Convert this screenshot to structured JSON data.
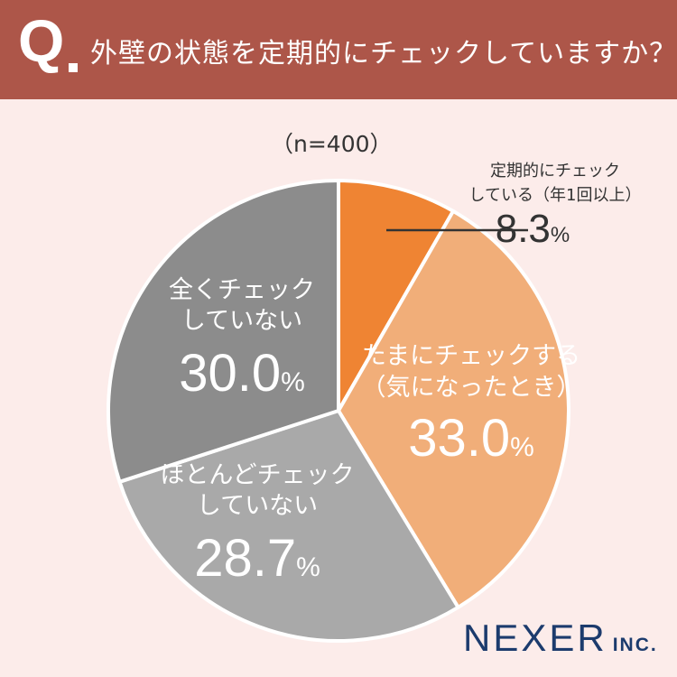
{
  "header": {
    "q_mark": "Q",
    "question": "外壁の状態を定期的にチェックしていますか？"
  },
  "sample_size": "（n=400）",
  "chart_data": {
    "type": "pie",
    "slices": [
      {
        "label_lines": [
          "定期的にチェック",
          "している（年1回以上）"
        ],
        "value": 8.3,
        "value_text": "8.3",
        "unit": "%",
        "color": "#ef8433"
      },
      {
        "label_lines": [
          "たまにチェックする",
          "（気になったとき）"
        ],
        "value": 33.0,
        "value_text": "33.0",
        "unit": "%",
        "color": "#f1ae79"
      },
      {
        "label_lines": [
          "ほとんどチェック",
          "していない"
        ],
        "value": 28.7,
        "value_text": "28.7",
        "unit": "%",
        "color": "#a9a9a9"
      },
      {
        "label_lines": [
          "全くチェック",
          "していない"
        ],
        "value": 30.0,
        "value_text": "30.0",
        "unit": "%",
        "color": "#8c8c8c"
      }
    ]
  },
  "logo": {
    "main": "NEXER",
    "sub": "INC."
  }
}
